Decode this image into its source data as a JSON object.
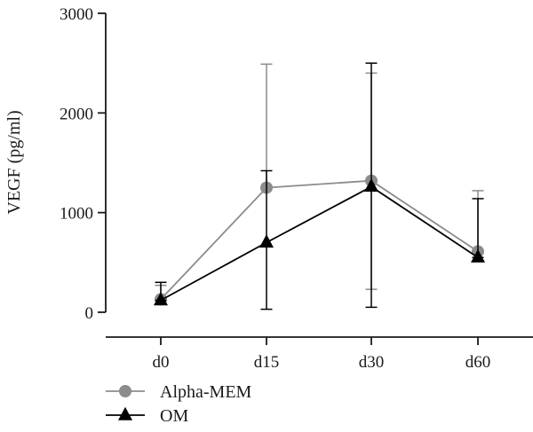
{
  "chart_data": {
    "type": "line",
    "ylabel": "VEGF (pg/ml)",
    "xlabel": "",
    "title": "",
    "categories": [
      "d0",
      "d15",
      "d30",
      "d60"
    ],
    "ylim": [
      0,
      3000
    ],
    "yticks": [
      0,
      1000,
      2000,
      3000
    ],
    "ytick_labels": [
      "0",
      "1000",
      "2000",
      "3000"
    ],
    "grid": false,
    "legend_position": "bottom-left",
    "series": [
      {
        "name": "Alpha-MEM",
        "marker": "circle",
        "color": "#8c8c8c",
        "values": [
          130,
          1250,
          1320,
          610
        ],
        "err_upper": [
          270,
          2490,
          2400,
          1220
        ],
        "err_lower": [
          130,
          1250,
          230,
          610
        ]
      },
      {
        "name": "OM",
        "marker": "triangle",
        "color": "#000000",
        "values": [
          120,
          700,
          1260,
          550
        ],
        "err_upper": [
          300,
          1420,
          2500,
          1140
        ],
        "err_lower": [
          120,
          30,
          50,
          550
        ]
      }
    ]
  }
}
